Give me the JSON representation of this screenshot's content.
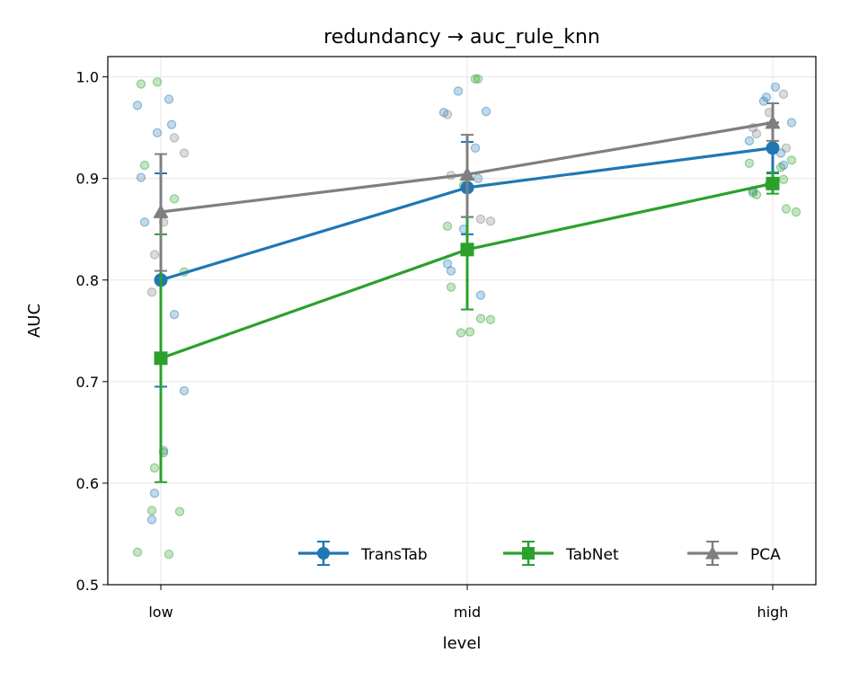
{
  "chart_data": {
    "type": "line",
    "title": "redundancy → auc_rule_knn",
    "xlabel": "level",
    "ylabel": "AUC",
    "categories": [
      "low",
      "mid",
      "high"
    ],
    "ylim": [
      0.5,
      1.02
    ],
    "yticks": [
      "0.5",
      "0.6",
      "0.7",
      "0.8",
      "0.9",
      "1.0"
    ],
    "grid": true,
    "legend_position": "bottom-right",
    "series": [
      {
        "name": "TransTab",
        "color": "#1f77b4",
        "marker": "circle",
        "values": [
          0.8,
          0.891,
          0.93
        ],
        "err_low": [
          0.695,
          0.845,
          0.905
        ],
        "err_high": [
          0.905,
          0.936,
          0.955
        ],
        "points": [
          [
            0.972,
            0.978,
            0.953,
            0.945,
            0.901,
            0.857,
            0.766,
            0.691,
            0.632,
            0.59,
            0.564
          ],
          [
            0.986,
            0.966,
            0.965,
            0.93,
            0.9,
            0.85,
            0.816,
            0.809,
            0.785
          ],
          [
            0.99,
            0.98,
            0.976,
            0.955,
            0.937,
            0.925,
            0.913,
            0.894,
            0.888
          ]
        ]
      },
      {
        "name": "TabNet",
        "color": "#2ca02c",
        "marker": "square",
        "values": [
          0.723,
          0.83,
          0.895
        ],
        "err_low": [
          0.601,
          0.771,
          0.885
        ],
        "err_high": [
          0.845,
          0.862,
          0.906
        ],
        "points": [
          [
            0.995,
            0.993,
            0.913,
            0.88,
            0.808,
            0.63,
            0.615,
            0.573,
            0.572,
            0.532,
            0.53
          ],
          [
            0.998,
            0.998,
            0.893,
            0.853,
            0.793,
            0.762,
            0.761,
            0.749,
            0.748
          ],
          [
            0.918,
            0.915,
            0.911,
            0.899,
            0.893,
            0.886,
            0.884,
            0.87,
            0.867
          ]
        ]
      },
      {
        "name": "PCA",
        "color": "#7f7f7f",
        "marker": "triangle",
        "values": [
          0.867,
          0.904,
          0.955
        ],
        "err_low": [
          0.809,
          0.862,
          0.937
        ],
        "err_high": [
          0.924,
          0.943,
          0.974
        ],
        "points": [
          [
            0.94,
            0.925,
            0.857,
            0.825,
            0.788
          ],
          [
            0.963,
            0.903,
            0.86,
            0.858
          ],
          [
            0.983,
            0.965,
            0.95,
            0.944,
            0.93
          ]
        ]
      }
    ]
  }
}
